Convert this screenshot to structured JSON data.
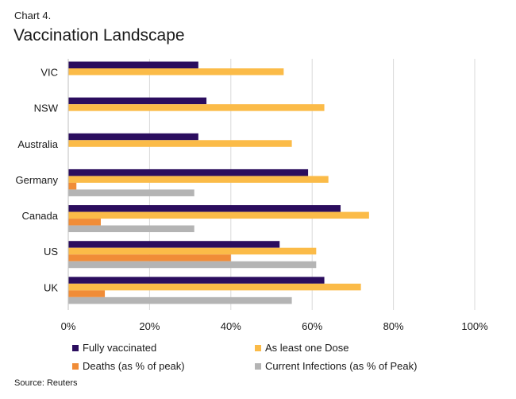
{
  "header": {
    "chart_label": "Chart 4.",
    "title": "Vaccination Landscape"
  },
  "footer": {
    "source": "Source: Reuters"
  },
  "colors": {
    "fully_vaccinated": "#2b0d5e",
    "at_least_one_dose": "#fbbb48",
    "deaths": "#f08c37",
    "current_infections": "#b4b4b4",
    "gridline": "#d9d9d9"
  },
  "chart_data": {
    "type": "bar",
    "orientation": "horizontal",
    "title": "Vaccination Landscape",
    "categories": [
      "VIC",
      "NSW",
      "Australia",
      "Germany",
      "Canada",
      "US",
      "UK"
    ],
    "series": [
      {
        "name": "Fully vaccinated",
        "values": [
          32,
          34,
          32,
          59,
          67,
          52,
          63
        ]
      },
      {
        "name": "As least one Dose",
        "values": [
          53,
          63,
          55,
          64,
          74,
          61,
          72
        ]
      },
      {
        "name": "Deaths (as % of peak)",
        "values": [
          null,
          null,
          null,
          2,
          8,
          40,
          9
        ]
      },
      {
        "name": "Current Infections (as % of Peak)",
        "values": [
          null,
          null,
          null,
          31,
          31,
          61,
          55
        ]
      }
    ],
    "xlim": [
      0,
      100
    ],
    "xticks": [
      "0%",
      "20%",
      "40%",
      "60%",
      "80%",
      "100%"
    ],
    "grid": true,
    "legend_position": "bottom"
  }
}
